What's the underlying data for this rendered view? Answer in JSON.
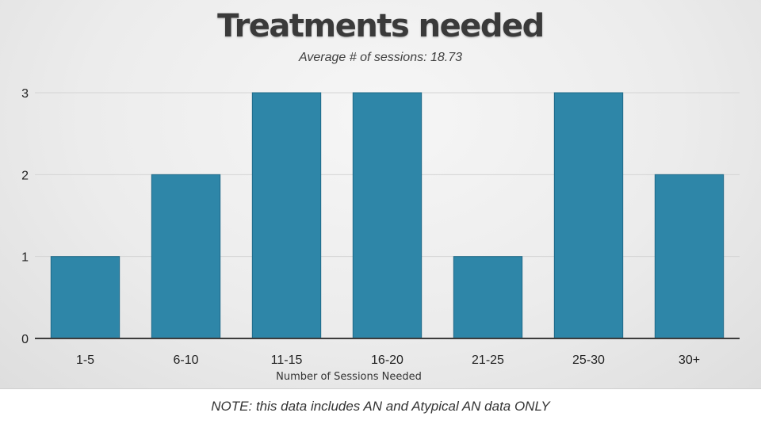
{
  "chart_data": {
    "type": "bar",
    "title": "Treatments needed",
    "subtitle": "Average # of sessions: 18.73",
    "categories": [
      "1-5",
      "6-10",
      "11-15",
      "16-20",
      "21-25",
      "25-30",
      "30+"
    ],
    "values": [
      1,
      2,
      3,
      3,
      1,
      3,
      2
    ],
    "xlabel": "Number of Sessions Needed",
    "ylabel": "",
    "ylim": [
      0,
      3
    ],
    "yticks": [
      0,
      1,
      2,
      3
    ],
    "grid": true,
    "legend": "none",
    "bar_color": "#2e86a8",
    "bar_edge_color": "#1f6a88"
  },
  "footnote": "NOTE: this data includes AN and Atypical AN data ONLY"
}
